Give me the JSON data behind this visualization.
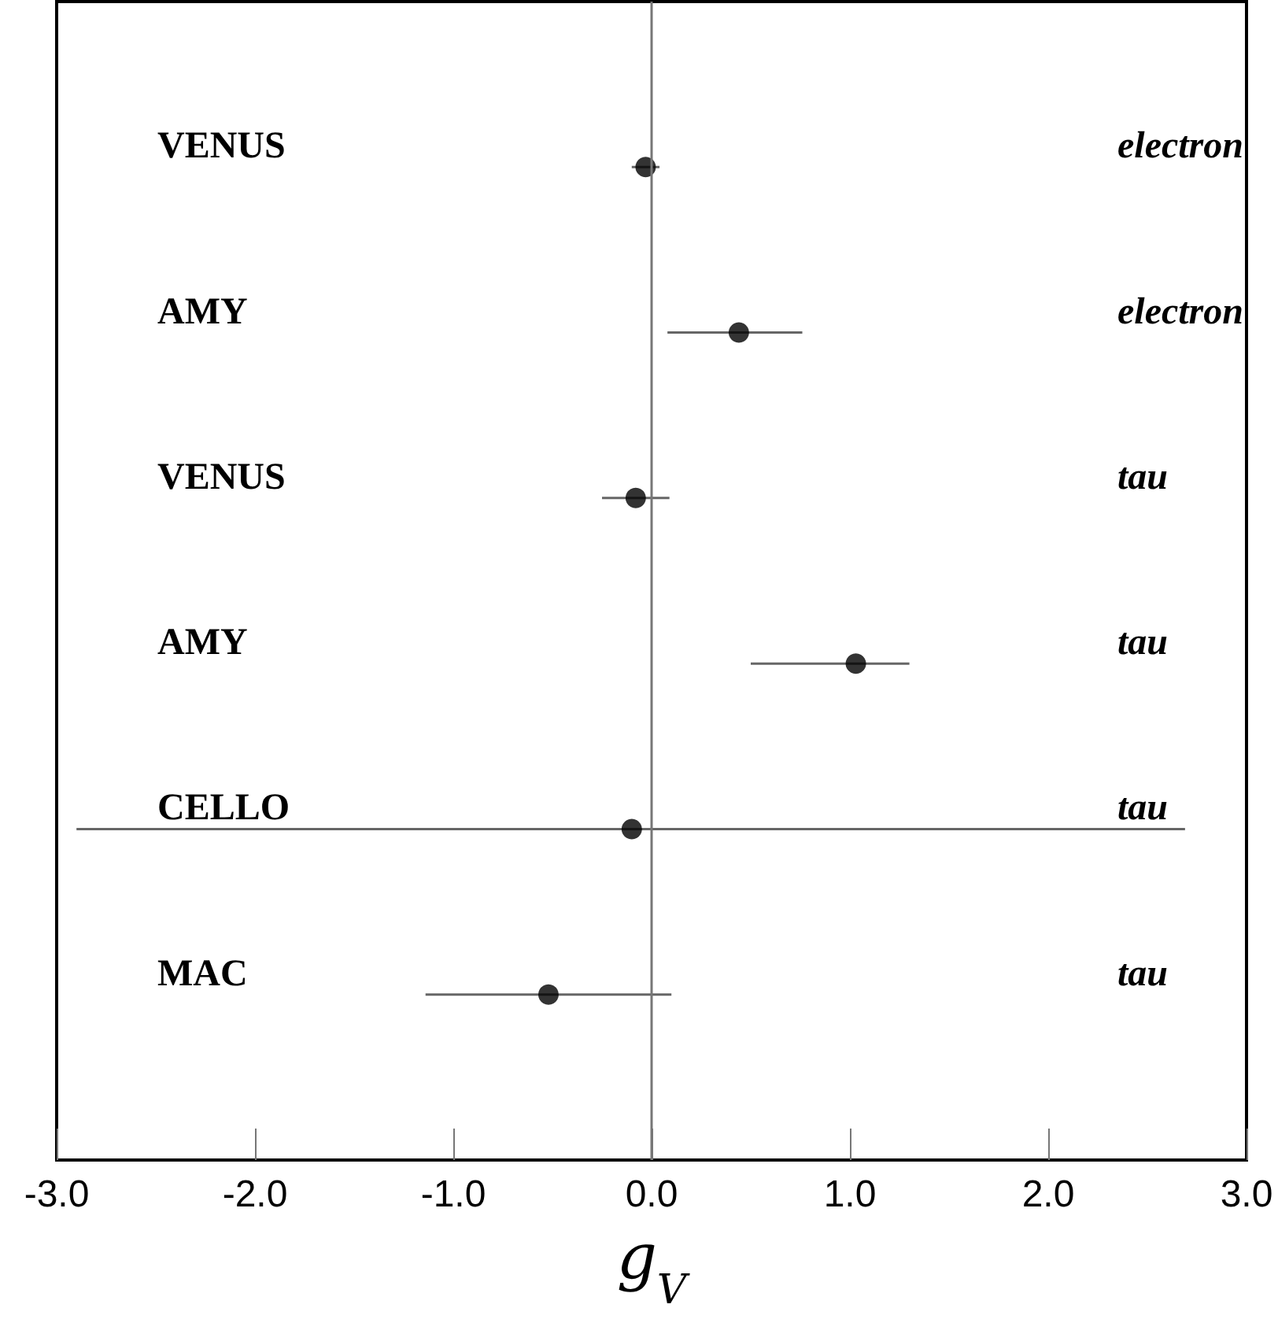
{
  "chart_data": {
    "type": "scatter",
    "orientation": "horizontal",
    "categories": [
      "VENUS",
      "AMY",
      "VENUS",
      "AMY",
      "CELLO",
      "MAC"
    ],
    "y2_categories": [
      "electron",
      "electron",
      "tau",
      "tau",
      "tau",
      "tau"
    ],
    "series": [
      {
        "color": "#000000",
        "values": [
          -0.03,
          0.44,
          -0.08,
          1.03,
          -0.1,
          -0.52
        ],
        "errors": [
          [
            -0.1,
            0.04
          ],
          [
            0.08,
            0.76
          ],
          [
            -0.25,
            0.09
          ],
          [
            0.5,
            1.3
          ],
          [
            -2.9,
            2.69
          ],
          [
            -1.14,
            0.1
          ]
        ]
      }
    ],
    "xlabel": "g$_{V}$",
    "xlim": [
      -3,
      3
    ],
    "xticks": [
      {
        "value": -3,
        "label": "-3.0"
      },
      {
        "value": -2,
        "label": "-2.0"
      },
      {
        "value": -1,
        "label": "-1.0"
      },
      {
        "value": 0,
        "label": "0.0"
      },
      {
        "value": 1,
        "label": "1.0"
      },
      {
        "value": 2,
        "label": "2.0"
      },
      {
        "value": 3,
        "label": "3.0"
      }
    ],
    "ref_lines": [
      {
        "axis": "x",
        "value": 0,
        "color": "#777777"
      }
    ],
    "tick_labels": "x",
    "marker": "circle",
    "grid": false
  }
}
